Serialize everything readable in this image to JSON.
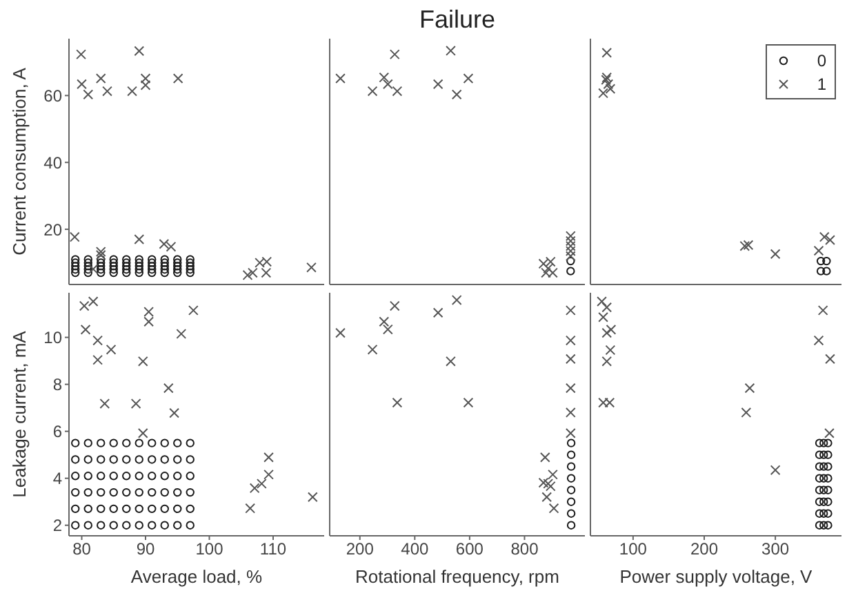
{
  "chart_data": [
    {
      "type": "scatter",
      "ylabel": "Current consumption, A",
      "xlim": [
        78,
        118
      ],
      "xticks": [
        80,
        90,
        100,
        110
      ],
      "ylim": [
        3.5,
        77
      ],
      "yticks": [
        20,
        40,
        60
      ],
      "tick_labels": "y",
      "series": [
        {
          "color": "#1a1a1a",
          "marker": "circle",
          "x": [
            79,
            81,
            83,
            85,
            87,
            89,
            91,
            93,
            95,
            97,
            79,
            81,
            83,
            85,
            87,
            89,
            91,
            93,
            95,
            97,
            79,
            81,
            83,
            85,
            87,
            89,
            91,
            93,
            95,
            97,
            79,
            81,
            83,
            85,
            87,
            89,
            91,
            93,
            95,
            97,
            79,
            81,
            83,
            85,
            87,
            89,
            91,
            93,
            95,
            97
          ],
          "values": [
            7,
            7,
            7,
            7,
            7,
            7,
            7,
            7,
            7,
            7,
            8,
            8,
            8,
            8,
            8,
            8,
            8,
            8,
            8,
            8,
            9,
            9,
            9,
            9,
            9,
            9,
            9,
            9,
            9,
            9,
            10,
            10,
            10,
            10,
            10,
            10,
            10,
            10,
            10,
            10,
            11,
            11,
            11,
            11,
            11,
            11,
            11,
            11,
            11,
            11
          ]
        },
        {
          "color": "#555555",
          "marker": "cross",
          "x": [
            79.9,
            80,
            81,
            83,
            84,
            87.9,
            89,
            90,
            90,
            95.1,
            78.9,
            83,
            83,
            89,
            92.9,
            94,
            106,
            106.8,
            107.9,
            109,
            108.9,
            116,
            81.8
          ],
          "values": [
            72.3,
            63.4,
            60.3,
            65.1,
            61.3,
            61.3,
            73.3,
            65.1,
            63.1,
            65.1,
            17.7,
            13.3,
            12.3,
            17,
            15.6,
            14.8,
            6.3,
            7,
            10,
            10.3,
            7,
            8.6,
            8.1
          ]
        }
      ]
    },
    {
      "type": "scatter",
      "title": "Failure",
      "xlim": [
        90,
        1020
      ],
      "xticks": [
        200,
        400,
        600,
        800
      ],
      "ylim": [
        3.5,
        77
      ],
      "yticks": [
        20,
        40,
        60
      ],
      "tick_labels": false,
      "series": [
        {
          "color": "#1a1a1a",
          "marker": "circle",
          "x": [
            968,
            968
          ],
          "values": [
            7.5,
            10.5
          ]
        },
        {
          "color": "#555555",
          "marker": "cross",
          "x": [
            129,
            246,
            288,
            302,
            327,
            336,
            485,
            531,
            553,
            595,
            869,
            886,
            903,
            878,
            895,
            968,
            968,
            968,
            968,
            968
          ],
          "values": [
            65.1,
            61.3,
            65.4,
            63.4,
            72.3,
            61.3,
            63.4,
            73.4,
            60.3,
            65.1,
            9.7,
            8.3,
            7,
            7,
            10.3,
            18,
            16.5,
            15,
            13.5,
            12
          ]
        }
      ]
    },
    {
      "type": "scatter",
      "xlim": [
        40,
        393
      ],
      "xticks": [
        100,
        200,
        300
      ],
      "ylim": [
        3.5,
        77
      ],
      "yticks": [
        20,
        40,
        60
      ],
      "tick_labels": false,
      "legend": "top right",
      "series": [
        {
          "name": "0",
          "color": "#1a1a1a",
          "marker": "circle",
          "x": [
            364,
            372,
            364,
            372
          ],
          "values": [
            7.5,
            7.5,
            10.5,
            10.5
          ]
        },
        {
          "name": "1",
          "color": "#555555",
          "marker": "cross",
          "x": [
            63,
            62,
            65,
            58,
            68,
            63,
            257,
            262,
            300,
            369,
            377,
            361
          ],
          "values": [
            72.8,
            64.7,
            63.4,
            60.7,
            62,
            65.4,
            15,
            15.3,
            12.6,
            17.7,
            16.8,
            13.6
          ]
        }
      ]
    },
    {
      "type": "scatter",
      "xlabel": "Average load, %",
      "ylabel": "Leakage current, mA",
      "xlim": [
        78,
        118
      ],
      "xticks": [
        80,
        90,
        100,
        110
      ],
      "ylim": [
        1.55,
        11.9
      ],
      "yticks": [
        2,
        4,
        6,
        8,
        10
      ],
      "series": [
        {
          "color": "#1a1a1a",
          "marker": "circle",
          "x": [
            79,
            81,
            83,
            85,
            87,
            89,
            91,
            93,
            95,
            97,
            79,
            81,
            83,
            85,
            87,
            89,
            91,
            93,
            95,
            97,
            79,
            81,
            83,
            85,
            87,
            89,
            91,
            93,
            95,
            97,
            79,
            81,
            83,
            85,
            87,
            89,
            91,
            93,
            95,
            97,
            79,
            81,
            83,
            85,
            87,
            89,
            91,
            93,
            95,
            97,
            79,
            81,
            83,
            85,
            87,
            89,
            91,
            93,
            95,
            97
          ],
          "values": [
            2,
            2,
            2,
            2,
            2,
            2,
            2,
            2,
            2,
            2,
            2.7,
            2.7,
            2.7,
            2.7,
            2.7,
            2.7,
            2.7,
            2.7,
            2.7,
            2.7,
            3.4,
            3.4,
            3.4,
            3.4,
            3.4,
            3.4,
            3.4,
            3.4,
            3.4,
            3.4,
            4.1,
            4.1,
            4.1,
            4.1,
            4.1,
            4.1,
            4.1,
            4.1,
            4.1,
            4.1,
            4.8,
            4.8,
            4.8,
            4.8,
            4.8,
            4.8,
            4.8,
            4.8,
            4.8,
            4.8,
            5.5,
            5.5,
            5.5,
            5.5,
            5.5,
            5.5,
            5.5,
            5.5,
            5.5,
            5.5
          ]
        },
        {
          "color": "#555555",
          "marker": "cross",
          "x": [
            80.4,
            81.8,
            80.6,
            82.5,
            82.5,
            84.6,
            83.6,
            88.5,
            89.6,
            90.5,
            90.5,
            93.6,
            94.5,
            95.6,
            97.5,
            89.6,
            106.4,
            107.1,
            108.2,
            109.3,
            109.3,
            116.2
          ],
          "values": [
            11.34,
            11.53,
            10.33,
            9.87,
            9.04,
            9.48,
            7.18,
            7.18,
            8.98,
            11.09,
            10.67,
            7.84,
            6.78,
            10.15,
            11.15,
            5.92,
            2.72,
            3.58,
            3.77,
            4.89,
            4.16,
            3.2
          ]
        }
      ]
    },
    {
      "type": "scatter",
      "xlabel": "Rotational frequency, rpm",
      "xlim": [
        90,
        1020
      ],
      "xticks": [
        200,
        400,
        600,
        800
      ],
      "ylim": [
        1.55,
        11.9
      ],
      "yticks": [
        2,
        4,
        6,
        8,
        10
      ],
      "tick_labels": "x",
      "series": [
        {
          "color": "#1a1a1a",
          "marker": "circle",
          "x": [
            970,
            970,
            970,
            970,
            970,
            970,
            970,
            970
          ],
          "values": [
            2,
            2.5,
            3,
            3.5,
            4,
            4.5,
            5,
            5.5
          ]
        },
        {
          "color": "#555555",
          "marker": "cross",
          "x": [
            129,
            246,
            288,
            302,
            327,
            336,
            485,
            553,
            531,
            595,
            875,
            869,
            886,
            903,
            881,
            907,
            895,
            968,
            968,
            968,
            968,
            968,
            968
          ],
          "values": [
            10.19,
            9.48,
            10.67,
            10.34,
            11.34,
            7.22,
            11.05,
            11.59,
            8.98,
            7.22,
            4.89,
            3.81,
            3.77,
            4.16,
            3.2,
            2.72,
            3.66,
            11.15,
            9.87,
            9.08,
            7.84,
            6.8,
            5.92
          ]
        }
      ]
    },
    {
      "type": "scatter",
      "xlabel": "Power supply voltage, V",
      "xlim": [
        40,
        393
      ],
      "xticks": [
        100,
        200,
        300
      ],
      "ylim": [
        1.55,
        11.9
      ],
      "yticks": [
        2,
        4,
        6,
        8,
        10
      ],
      "tick_labels": "x",
      "series": [
        {
          "color": "#1a1a1a",
          "marker": "circle",
          "x": [
            362,
            368,
            374,
            362,
            368,
            374,
            362,
            368,
            374,
            362,
            368,
            374,
            362,
            368,
            374,
            362,
            368,
            374,
            362,
            368,
            374,
            362,
            368,
            374
          ],
          "values": [
            2,
            2,
            2,
            2.5,
            2.5,
            2.5,
            3,
            3,
            3,
            3.5,
            3.5,
            3.5,
            4,
            4,
            4,
            4.5,
            4.5,
            4.5,
            5,
            5,
            5,
            5.5,
            5.5,
            5.5
          ]
        },
        {
          "color": "#555555",
          "marker": "cross",
          "x": [
            56,
            63,
            58,
            63,
            69,
            68,
            63,
            58,
            67,
            264,
            259,
            300,
            367,
            361,
            377,
            376
          ],
          "values": [
            11.53,
            11.28,
            10.86,
            10.19,
            10.33,
            9.46,
            8.98,
            7.22,
            7.22,
            7.84,
            6.8,
            4.35,
            11.15,
            9.87,
            9.08,
            5.92
          ]
        }
      ]
    }
  ]
}
